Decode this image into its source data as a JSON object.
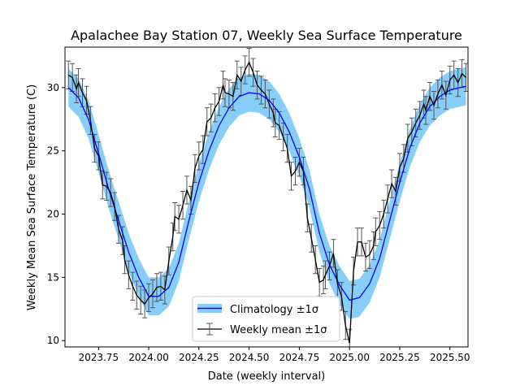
{
  "chart_data": {
    "type": "line",
    "title": "Apalachee Bay Station 07, Weekly Sea Surface Temperature",
    "xlabel": "Date (weekly interval)",
    "ylabel": "Weekly Mean Sea Surface Temperature (C)",
    "xlim": [
      2023.583,
      2025.59
    ],
    "ylim": [
      9.5,
      33.2
    ],
    "x_ticks": [
      2023.75,
      2024.0,
      2024.25,
      2024.5,
      2024.75,
      2025.0,
      2025.25,
      2025.5
    ],
    "x_tick_labels": [
      "2023.75",
      "2024.00",
      "2024.25",
      "2024.50",
      "2024.75",
      "2025.00",
      "2025.25",
      "2025.50"
    ],
    "y_ticks": [
      10,
      15,
      20,
      25,
      30
    ],
    "y_tick_labels": [
      "10",
      "15",
      "20",
      "25",
      "30"
    ],
    "grid": false,
    "legend_position": "lower center",
    "legend": [
      {
        "label": "Climatology ±1σ",
        "kind": "band-line"
      },
      {
        "label": "Weekly mean ±1σ",
        "kind": "errorbar-line"
      }
    ],
    "colors": {
      "climatology_line": "#0000ff",
      "climatology_band": "#87cefa",
      "weekly_line": "#000000",
      "error_bars": "#555555"
    },
    "series": [
      {
        "role": "climatology",
        "x": [
          2023.6,
          2023.65,
          2023.7,
          2023.75,
          2023.8,
          2023.85,
          2023.9,
          2023.95,
          2024.0,
          2024.05,
          2024.1,
          2024.15,
          2024.2,
          2024.25,
          2024.3,
          2024.35,
          2024.4,
          2024.45,
          2024.5,
          2024.55,
          2024.6,
          2024.65,
          2024.7,
          2024.75,
          2024.8,
          2024.85,
          2024.9,
          2024.95,
          2025.0,
          2025.05,
          2025.1,
          2025.15,
          2025.2,
          2025.25,
          2025.3,
          2025.35,
          2025.4,
          2025.45,
          2025.5,
          2025.55,
          2025.58
        ],
        "values": [
          30.0,
          29.2,
          27.5,
          24.8,
          22.0,
          19.5,
          17.0,
          15.0,
          13.5,
          13.5,
          14.2,
          16.2,
          19.5,
          22.5,
          25.0,
          27.0,
          28.4,
          29.3,
          29.6,
          29.5,
          29.0,
          28.0,
          26.5,
          24.5,
          22.0,
          18.5,
          16.0,
          14.4,
          13.2,
          13.4,
          14.5,
          16.5,
          19.5,
          22.5,
          25.2,
          27.2,
          28.5,
          29.3,
          29.8,
          30.0,
          30.1
        ],
        "sigma": 1.5
      },
      {
        "role": "weekly",
        "x": [
          2023.6,
          2023.62,
          2023.64,
          2023.65,
          2023.67,
          2023.69,
          2023.71,
          2023.73,
          2023.75,
          2023.77,
          2023.79,
          2023.81,
          2023.83,
          2023.85,
          2023.87,
          2023.88,
          2023.9,
          2023.92,
          2023.94,
          2023.96,
          2023.98,
          2024.0,
          2024.02,
          2024.04,
          2024.06,
          2024.08,
          2024.1,
          2024.12,
          2024.13,
          2024.15,
          2024.17,
          2024.19,
          2024.21,
          2024.23,
          2024.25,
          2024.27,
          2024.29,
          2024.31,
          2024.33,
          2024.35,
          2024.37,
          2024.38,
          2024.4,
          2024.42,
          2024.44,
          2024.46,
          2024.48,
          2024.5,
          2024.52,
          2024.54,
          2024.56,
          2024.58,
          2024.6,
          2024.62,
          2024.63,
          2024.65,
          2024.67,
          2024.69,
          2024.71,
          2024.73,
          2024.75,
          2024.77,
          2024.79,
          2024.81,
          2024.83,
          2024.85,
          2024.87,
          2024.88,
          2024.9,
          2024.92,
          2024.94,
          2024.96,
          2024.98,
          2025.0,
          2025.02,
          2025.04,
          2025.06,
          2025.08,
          2025.1,
          2025.12,
          2025.13,
          2025.15,
          2025.17,
          2025.19,
          2025.21,
          2025.23,
          2025.25,
          2025.27,
          2025.29,
          2025.31,
          2025.33,
          2025.35,
          2025.37,
          2025.38,
          2025.4,
          2025.42,
          2025.44,
          2025.46,
          2025.48,
          2025.5,
          2025.52,
          2025.54,
          2025.56,
          2025.58
        ],
        "values": [
          31.0,
          30.8,
          29.9,
          30.4,
          29.6,
          29.0,
          27.4,
          25.2,
          24.6,
          22.3,
          22.2,
          21.7,
          20.6,
          18.8,
          17.9,
          16.4,
          15.2,
          14.3,
          13.6,
          13.2,
          12.9,
          13.4,
          13.7,
          14.2,
          14.3,
          14.0,
          16.3,
          18.2,
          19.8,
          19.6,
          20.7,
          21.9,
          21.1,
          23.6,
          24.6,
          25.1,
          27.3,
          27.6,
          28.4,
          28.9,
          30.2,
          29.6,
          29.5,
          29.3,
          31.0,
          30.5,
          31.4,
          32.0,
          31.2,
          30.2,
          29.8,
          29.5,
          28.7,
          28.0,
          27.2,
          27.0,
          26.1,
          25.2,
          23.0,
          23.4,
          24.1,
          23.4,
          19.7,
          18.1,
          16.4,
          14.6,
          14.8,
          15.2,
          15.9,
          16.9,
          14.5,
          13.5,
          11.2,
          9.8,
          15.5,
          17.8,
          17.8,
          16.6,
          16.8,
          17.5,
          18.6,
          19.1,
          20.0,
          21.2,
          22.4,
          21.8,
          23.7,
          24.4,
          26.0,
          26.5,
          27.2,
          27.8,
          28.7,
          28.2,
          29.3,
          28.6,
          29.5,
          30.2,
          29.4,
          30.6,
          31.0,
          30.4,
          31.1,
          30.8
        ],
        "sigma": 1.1
      }
    ]
  }
}
